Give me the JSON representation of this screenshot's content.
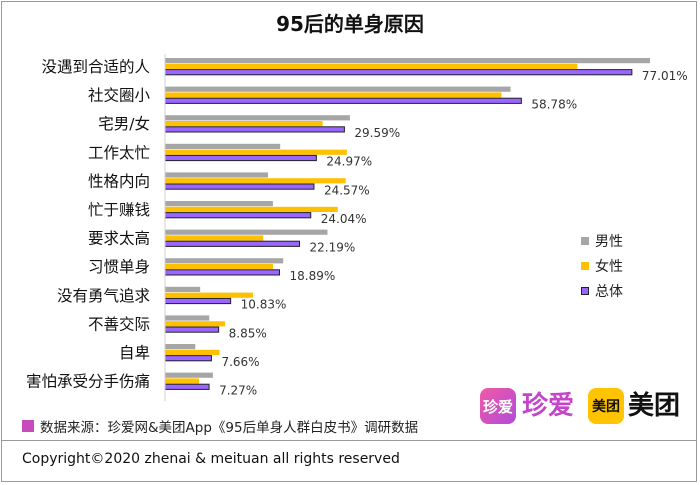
{
  "chart_data": {
    "type": "bar",
    "orientation": "horizontal",
    "title": "95后的单身原因",
    "categories": [
      "没遇到合适的人",
      "社交圈小",
      "宅男/女",
      "工作太忙",
      "性格内向",
      "忙于赚钱",
      "要求太高",
      "习惯单身",
      "没有勇气追求",
      "不善交际",
      "自卑",
      "害怕承受分手伤痛"
    ],
    "series": [
      {
        "name": "男性",
        "color": "#a6a6a6",
        "values": [
          80.0,
          57.0,
          30.5,
          19.0,
          17.0,
          17.8,
          26.8,
          19.5,
          5.8,
          7.3,
          5.0,
          7.9
        ]
      },
      {
        "name": "女性",
        "color": "#ffc000",
        "values": [
          68.0,
          55.5,
          26.0,
          30.0,
          29.8,
          28.5,
          16.2,
          17.8,
          14.5,
          9.9,
          9.0,
          5.6
        ]
      },
      {
        "name": "总体",
        "color": "#9966ff",
        "values": [
          77.01,
          58.78,
          29.59,
          24.97,
          24.57,
          24.04,
          22.19,
          18.89,
          10.83,
          8.85,
          7.66,
          7.27
        ]
      }
    ],
    "data_labels": [
      "77.01%",
      "58.78%",
      "29.59%",
      "24.97%",
      "24.57%",
      "24.04%",
      "22.19%",
      "18.89%",
      "10.83%",
      "8.85%",
      "7.66%",
      "7.27%"
    ],
    "xlim": [
      0,
      80
    ],
    "grid": false,
    "legend_position": "right"
  },
  "source": "数据来源：珍爱网&美团App《95后单身人群白皮书》调研数据",
  "copyright": "Copyright©2020 zhenai & meituan all rights reserved",
  "logos": {
    "zhenai_mark": "珍爱",
    "zhenai_name": "珍爱",
    "meituan_mark": "美团",
    "meituan_name": "美团"
  }
}
